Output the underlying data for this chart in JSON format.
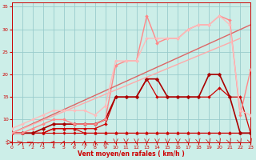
{
  "xlabel": "Vent moyen/en rafales ( km/h )",
  "background_color": "#cceee8",
  "grid_color": "#99cccc",
  "xlim": [
    0,
    23
  ],
  "ylim": [
    5,
    36
  ],
  "yticks": [
    5,
    10,
    15,
    20,
    25,
    30,
    35
  ],
  "xticks": [
    0,
    1,
    2,
    3,
    4,
    5,
    6,
    7,
    8,
    9,
    10,
    11,
    12,
    13,
    14,
    15,
    16,
    17,
    18,
    19,
    20,
    21,
    22,
    23
  ],
  "series": [
    {
      "x": [
        0,
        1,
        2,
        3,
        4,
        5,
        6,
        7,
        8,
        9,
        10,
        11,
        12,
        13,
        14,
        15,
        16,
        17,
        18,
        19,
        20,
        21,
        22,
        23
      ],
      "y": [
        7,
        7,
        7,
        7,
        7,
        7,
        7,
        7,
        7,
        7,
        7,
        7,
        7,
        7,
        7,
        7,
        7,
        7,
        7,
        7,
        7,
        7,
        7,
        7
      ],
      "color": "#cc0000",
      "lw": 0.8,
      "marker": "D",
      "ms": 2.0
    },
    {
      "x": [
        0,
        1,
        2,
        3,
        4,
        5,
        6,
        7,
        8,
        9,
        10,
        11,
        12,
        13,
        14,
        15,
        16,
        17,
        18,
        19,
        20,
        21,
        22,
        23
      ],
      "y": [
        7,
        7,
        7,
        7,
        8,
        8,
        8,
        7,
        7,
        7,
        7,
        7,
        7,
        7,
        7,
        7,
        7,
        7,
        7,
        7,
        7,
        7,
        7,
        7
      ],
      "color": "#cc0000",
      "lw": 0.8,
      "marker": "^",
      "ms": 2.5
    },
    {
      "x": [
        0,
        1,
        2,
        3,
        4,
        5,
        6,
        7,
        8,
        9,
        10,
        11,
        12,
        13,
        14,
        15,
        16,
        17,
        18,
        19,
        20,
        21,
        22,
        23
      ],
      "y": [
        7,
        7,
        7,
        7,
        8,
        8,
        8,
        8,
        8,
        9,
        15,
        15,
        15,
        19,
        15,
        15,
        15,
        15,
        15,
        15,
        17,
        15,
        15,
        7
      ],
      "color": "#cc0000",
      "lw": 0.9,
      "marker": "D",
      "ms": 2.0
    },
    {
      "x": [
        0,
        1,
        2,
        3,
        4,
        5,
        6,
        7,
        8,
        9,
        10,
        11,
        12,
        13,
        14,
        15,
        16,
        17,
        18,
        19,
        20,
        21,
        22,
        23
      ],
      "y": [
        7,
        7,
        7,
        8,
        9,
        9,
        9,
        9,
        9,
        10,
        15,
        15,
        15,
        19,
        19,
        15,
        15,
        15,
        15,
        20,
        20,
        15,
        7,
        7
      ],
      "color": "#aa0000",
      "lw": 1.2,
      "marker": "D",
      "ms": 2.5
    },
    {
      "x": [
        0,
        1,
        2,
        3,
        4,
        5,
        6,
        7,
        8,
        9,
        10,
        11,
        12,
        13,
        14,
        15,
        16,
        17,
        18,
        19,
        20,
        21,
        22,
        23
      ],
      "y": [
        7,
        7,
        8,
        9,
        10,
        10,
        9,
        9,
        9,
        10,
        22,
        23,
        23,
        33,
        27,
        28,
        28,
        30,
        31,
        31,
        33,
        32,
        11,
        21
      ],
      "color": "#ff8888",
      "lw": 1.0,
      "marker": "D",
      "ms": 2.0
    },
    {
      "x": [
        0,
        23
      ],
      "y": [
        7,
        31
      ],
      "color": "#dd6666",
      "lw": 1.0,
      "marker": null,
      "ms": 0
    },
    {
      "x": [
        0,
        22
      ],
      "y": [
        7,
        28
      ],
      "color": "#ffaaaa",
      "lw": 1.0,
      "marker": null,
      "ms": 0
    },
    {
      "x": [
        0,
        1,
        2,
        3,
        4,
        5,
        6,
        7,
        8,
        9,
        10,
        11,
        12,
        13,
        14,
        15,
        16,
        17,
        18,
        19,
        20,
        21,
        22,
        23
      ],
      "y": [
        8,
        9,
        10,
        11,
        12,
        12,
        12,
        12,
        11,
        13,
        23,
        23,
        23,
        28,
        28,
        28,
        28,
        30,
        31,
        31,
        33,
        31,
        12,
        11
      ],
      "color": "#ffbbbb",
      "lw": 1.0,
      "marker": "D",
      "ms": 2.0
    }
  ],
  "arrow_angles": [
    0,
    15,
    30,
    45,
    60,
    75,
    80,
    90,
    95,
    100,
    270,
    270,
    270,
    270,
    270,
    270,
    270,
    280,
    280,
    280,
    285,
    285,
    285,
    285
  ]
}
